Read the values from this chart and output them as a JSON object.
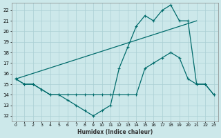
{
  "xlabel": "Humidex (Indice chaleur)",
  "bg_color": "#cce8ea",
  "grid_color": "#aacfd4",
  "line_color": "#006b6b",
  "xlim": [
    -0.5,
    23.5
  ],
  "ylim": [
    11.5,
    22.7
  ],
  "xticks": [
    0,
    1,
    2,
    3,
    4,
    5,
    6,
    7,
    8,
    9,
    10,
    11,
    12,
    13,
    14,
    15,
    16,
    17,
    18,
    19,
    20,
    21,
    22,
    23
  ],
  "yticks": [
    12,
    13,
    14,
    15,
    16,
    17,
    18,
    19,
    20,
    21,
    22
  ],
  "line1_x": [
    0,
    1,
    2,
    3,
    4,
    5,
    6,
    7,
    8,
    9,
    10,
    11,
    12,
    13,
    14,
    15,
    16,
    17,
    18,
    19,
    20,
    21,
    22,
    23
  ],
  "line1_y": [
    15.5,
    15.0,
    15.0,
    14.5,
    14.0,
    14.0,
    13.5,
    13.0,
    12.5,
    12.0,
    12.5,
    13.0,
    16.5,
    18.5,
    20.5,
    21.5,
    21.0,
    22.0,
    22.5,
    21.0,
    21.0,
    15.0,
    15.0,
    14.0
  ],
  "line2_x": [
    0,
    1,
    2,
    3,
    4,
    5,
    6,
    7,
    8,
    9,
    10,
    11,
    12,
    13,
    14,
    15,
    16,
    17,
    18,
    19,
    20,
    21,
    22,
    23
  ],
  "line2_y": [
    15.5,
    15.0,
    15.0,
    14.5,
    14.0,
    14.0,
    14.0,
    14.0,
    14.0,
    14.0,
    14.0,
    14.0,
    14.0,
    14.0,
    14.0,
    16.5,
    17.0,
    17.5,
    18.0,
    17.5,
    15.5,
    15.0,
    15.0,
    14.0
  ],
  "line3_x": [
    0,
    21
  ],
  "line3_y": [
    15.5,
    21.0
  ]
}
